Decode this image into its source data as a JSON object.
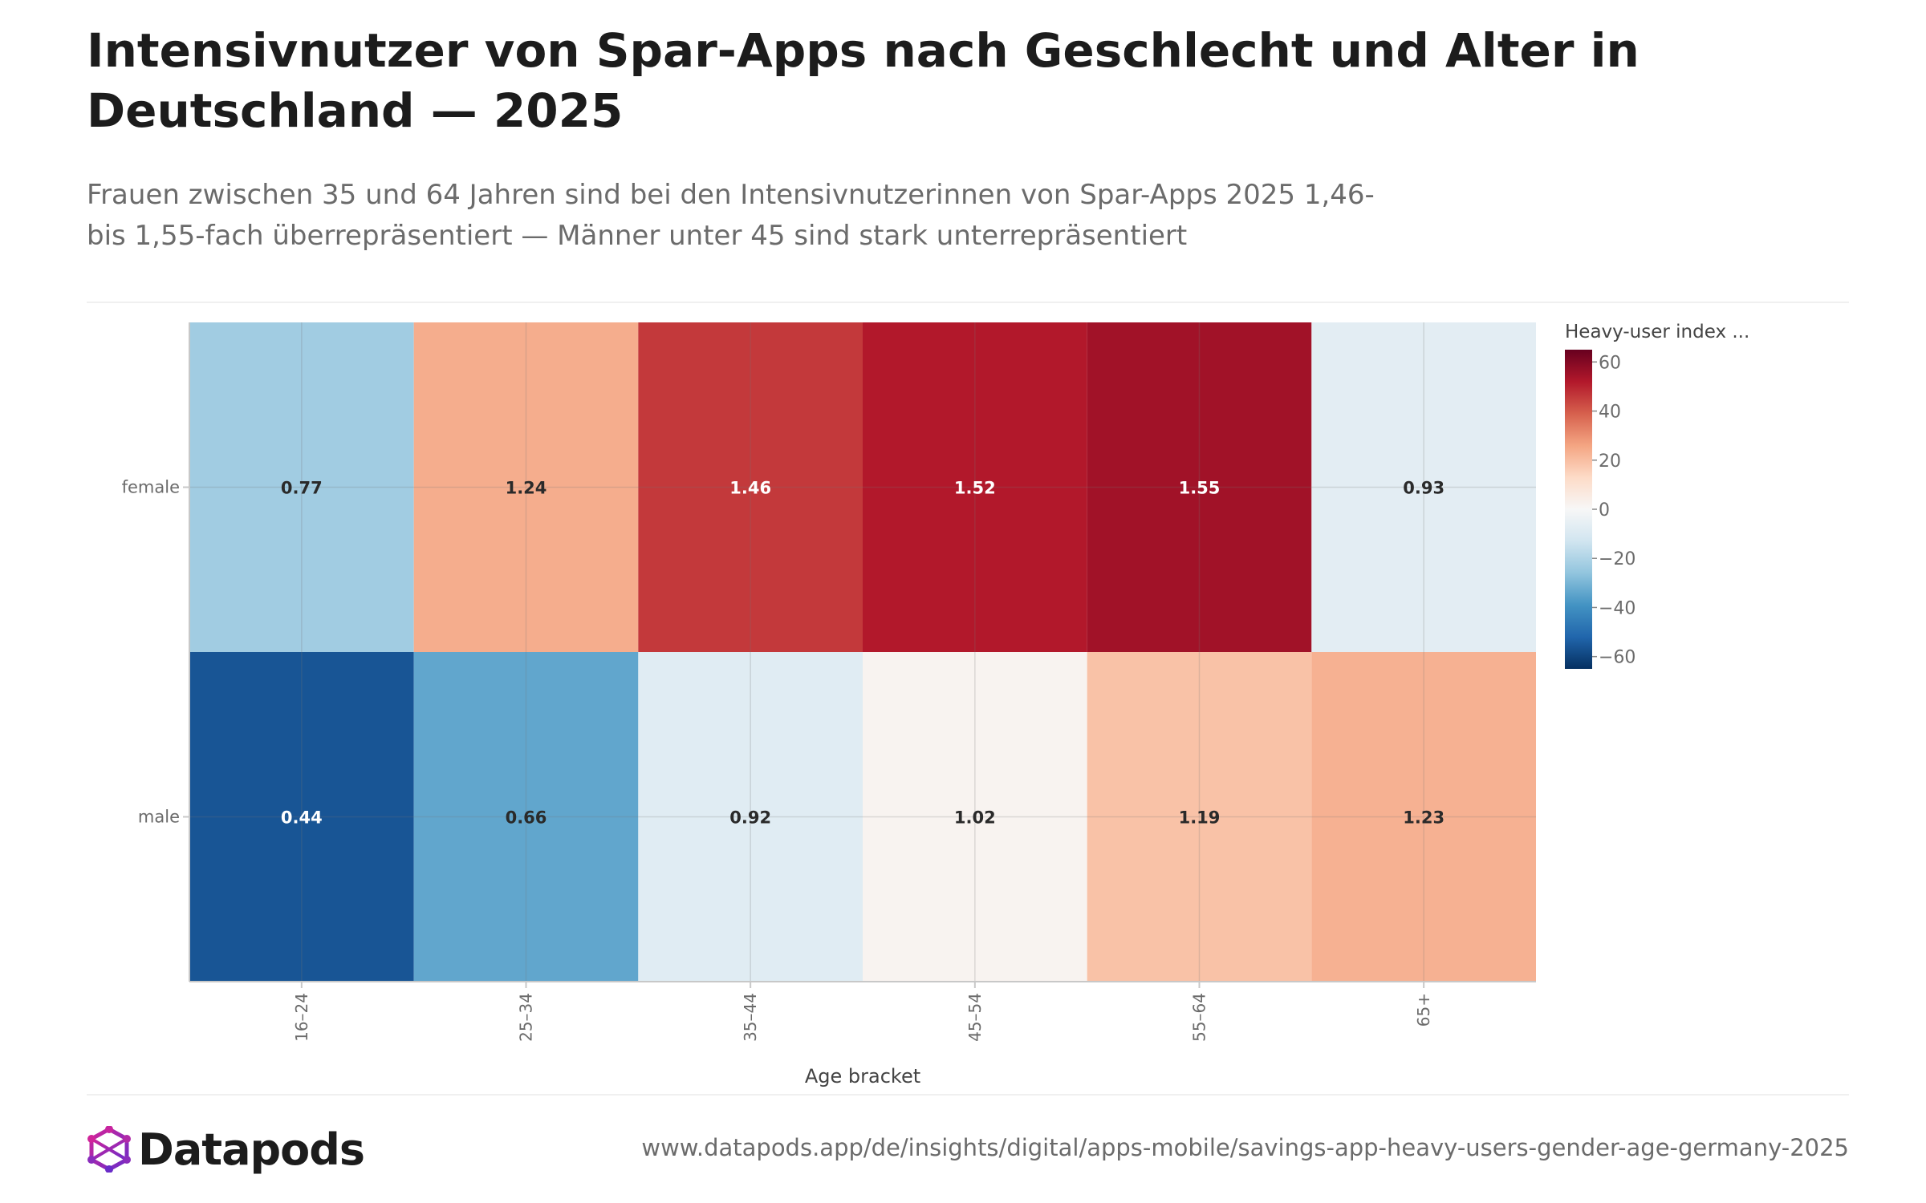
{
  "title": "Intensivnutzer von Spar-Apps nach Geschlecht und Alter in Deutschland — 2025",
  "subtitle": "Frauen zwischen 35 und 64 Jahren sind bei den Intensivnutzerinnen von Spar-Apps 2025 1,46- bis 1,55-fach überrepräsentiert — Männer unter 45 sind stark unterrepräsentiert",
  "brand": {
    "name": "Datapods"
  },
  "source_url": "www.datapods.app/de/insights/digital/apps-mobile/savings-app-heavy-users-gender-age-germany-2025",
  "chart_data": {
    "type": "heatmap",
    "x_categories": [
      "16–24",
      "25–34",
      "35–44",
      "45–54",
      "55–64",
      "65+"
    ],
    "y_categories": [
      "female",
      "male"
    ],
    "values": [
      [
        0.77,
        1.24,
        1.46,
        1.52,
        1.55,
        0.93
      ],
      [
        0.44,
        0.66,
        0.92,
        1.02,
        1.19,
        1.23
      ]
    ],
    "value_labels": [
      [
        "0.77",
        "1.24",
        "1.46",
        "1.52",
        "1.55",
        "0.93"
      ],
      [
        "0.44",
        "0.66",
        "0.92",
        "1.02",
        "1.19",
        "1.23"
      ]
    ],
    "xlabel": "Age bracket",
    "ylabel": "",
    "colorbar": {
      "title": "Heavy-user index ...",
      "range": [
        -65,
        65
      ],
      "ticks": [
        60,
        40,
        20,
        0,
        -20,
        -40,
        -60
      ],
      "tick_labels": [
        "60",
        "40",
        "20",
        "0",
        "−20",
        "−40",
        "−60"
      ],
      "colorscale": [
        "#053061",
        "#2166ac",
        "#4393c3",
        "#92c5de",
        "#d1e5f0",
        "#f7f7f7",
        "#fddbc7",
        "#f4a582",
        "#d6604d",
        "#b2182b",
        "#67001f"
      ]
    },
    "grid": true,
    "legend": "right"
  }
}
